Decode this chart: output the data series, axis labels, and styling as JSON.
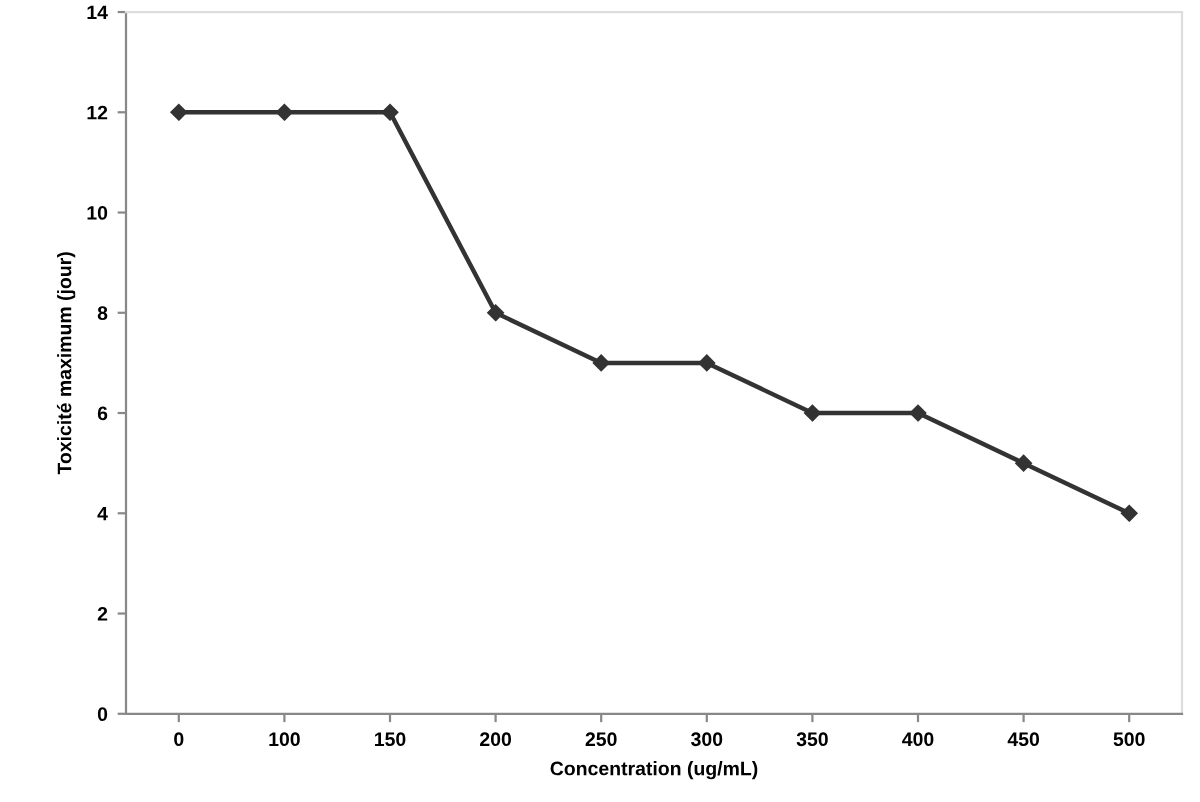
{
  "chart_data": {
    "type": "line",
    "xlabel": "Concentration (ug/mL)",
    "ylabel": "Toxicité maximum (jour)",
    "categories": [
      "0",
      "100",
      "150",
      "200",
      "250",
      "300",
      "350",
      "400",
      "450",
      "500"
    ],
    "values": [
      12,
      12,
      12,
      8,
      7,
      7,
      6,
      6,
      5,
      4
    ],
    "color": "#333333",
    "ylim": [
      0,
      14
    ],
    "yticks": [
      0,
      2,
      4,
      6,
      8,
      10,
      12,
      14
    ],
    "grid": false,
    "marker": "diamond",
    "line_style": "solid"
  }
}
